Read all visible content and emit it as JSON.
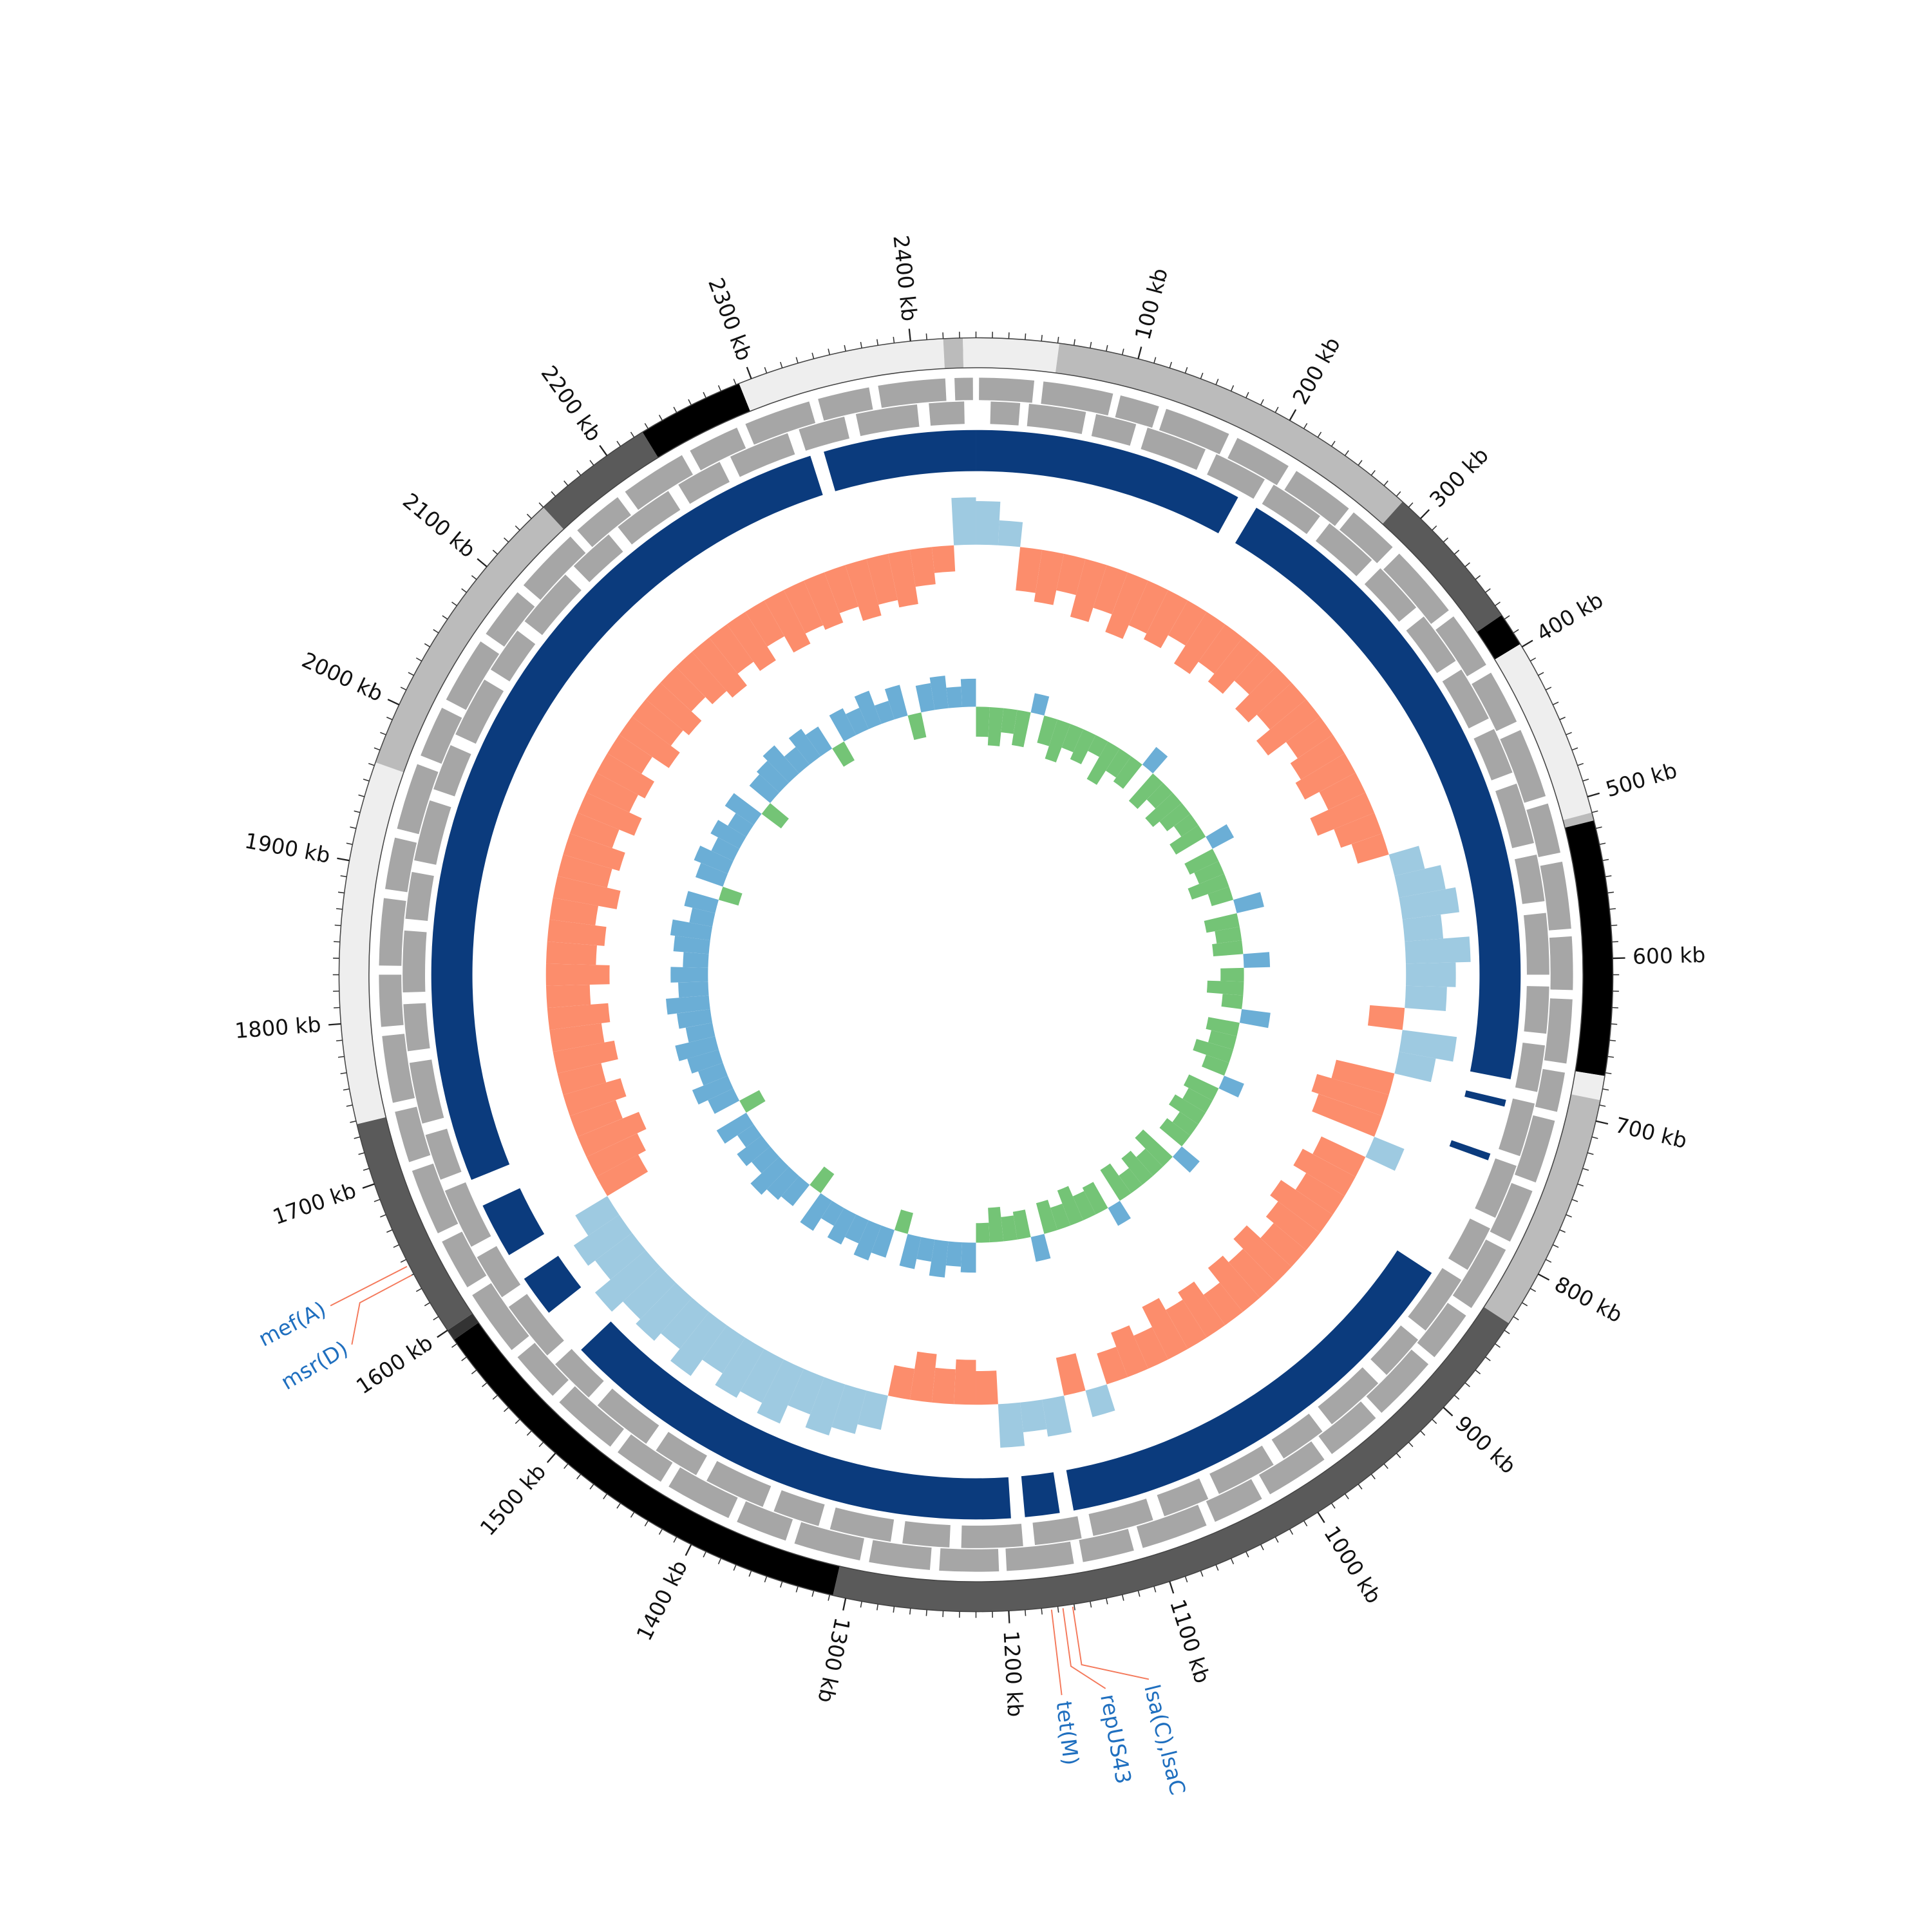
{
  "chart_data": {
    "type": "circular-genome",
    "genome_length": 2440,
    "minor_tick_interval": 10,
    "ticks": [
      {
        "value": 100,
        "label": "100 kb"
      },
      {
        "value": 200,
        "label": "200 kb"
      },
      {
        "value": 300,
        "label": "300 kb"
      },
      {
        "value": 400,
        "label": "400 kb"
      },
      {
        "value": 500,
        "label": "500 kb"
      },
      {
        "value": 600,
        "label": "600 kb"
      },
      {
        "value": 700,
        "label": "700 kb"
      },
      {
        "value": 800,
        "label": "800 kb"
      },
      {
        "value": 900,
        "label": "900 kb"
      },
      {
        "value": 1000,
        "label": "1000 kb"
      },
      {
        "value": 1100,
        "label": "1100 kb"
      },
      {
        "value": 1200,
        "label": "1200 kb"
      },
      {
        "value": 1300,
        "label": "1300 kb"
      },
      {
        "value": 1400,
        "label": "1400 kb"
      },
      {
        "value": 1500,
        "label": "1500 kb"
      },
      {
        "value": 1600,
        "label": "1600 kb"
      },
      {
        "value": 1700,
        "label": "1700 kb"
      },
      {
        "value": 1800,
        "label": "1800 kb"
      },
      {
        "value": 1900,
        "label": "1900 kb"
      },
      {
        "value": 2000,
        "label": "2000 kb"
      },
      {
        "value": 2100,
        "label": "2100 kb"
      },
      {
        "value": 2200,
        "label": "2200 kb"
      },
      {
        "value": 2300,
        "label": "2300 kb"
      },
      {
        "value": 2400,
        "label": "2400 kb"
      }
    ],
    "contigs": [
      {
        "start": 0,
        "end": 51,
        "color": "#eeeeee"
      },
      {
        "start": 51,
        "end": 285,
        "color": "#bbbbbb"
      },
      {
        "start": 285,
        "end": 377,
        "color": "#5a5a5a"
      },
      {
        "start": 377,
        "end": 398,
        "color": "#000000"
      },
      {
        "start": 398,
        "end": 510,
        "color": "#eeeeee"
      },
      {
        "start": 510,
        "end": 515,
        "color": "#bbbbbb"
      },
      {
        "start": 515,
        "end": 672,
        "color": "#000000"
      },
      {
        "start": 672,
        "end": 687,
        "color": "#eeeeee"
      },
      {
        "start": 687,
        "end": 835,
        "color": "#bbbbbb"
      },
      {
        "start": 835,
        "end": 1308,
        "color": "#5a5a5a"
      },
      {
        "start": 1308,
        "end": 1593,
        "color": "#000000"
      },
      {
        "start": 1593,
        "end": 1600,
        "color": "#333333"
      },
      {
        "start": 1600,
        "end": 1738,
        "color": "#5a5a5a"
      },
      {
        "start": 1738,
        "end": 1962,
        "color": "#eeeeee"
      },
      {
        "start": 1962,
        "end": 2150,
        "color": "#bbbbbb"
      },
      {
        "start": 2150,
        "end": 2226,
        "color": "#5a5a5a"
      },
      {
        "start": 2226,
        "end": 2292,
        "color": "#000000"
      },
      {
        "start": 2292,
        "end": 2420,
        "color": "#eeeeee"
      },
      {
        "start": 2420,
        "end": 2432,
        "color": "#bbbbbb"
      },
      {
        "start": 2432,
        "end": 2440,
        "color": "#eeeeee"
      }
    ],
    "genes": {
      "color": "#a6a6a6",
      "forward": [
        [
          2,
          38
        ],
        [
          44,
          90
        ],
        [
          95,
          121
        ],
        [
          126,
          170
        ],
        [
          176,
          214
        ],
        [
          220,
          262
        ],
        [
          266,
          300
        ],
        [
          306,
          355
        ],
        [
          360,
          398
        ],
        [
          404,
          440
        ],
        [
          446,
          492
        ],
        [
          497,
          530
        ],
        [
          536,
          580
        ],
        [
          585,
          620
        ],
        [
          626,
          668
        ],
        [
          674,
          700
        ],
        [
          706,
          748
        ],
        [
          754,
          790
        ],
        [
          796,
          840
        ],
        [
          846,
          880
        ],
        [
          886,
          930
        ],
        [
          935,
          972
        ],
        [
          978,
          1020
        ],
        [
          1026,
          1060
        ],
        [
          1066,
          1110
        ],
        [
          1116,
          1150
        ],
        [
          1156,
          1200
        ],
        [
          1205,
          1244
        ],
        [
          1250,
          1290
        ],
        [
          1296,
          1340
        ],
        [
          1346,
          1380
        ],
        [
          1386,
          1430
        ],
        [
          1436,
          1470
        ],
        [
          1476,
          1520
        ],
        [
          1526,
          1560
        ],
        [
          1566,
          1610
        ],
        [
          1616,
          1650
        ],
        [
          1656,
          1700
        ],
        [
          1706,
          1740
        ],
        [
          1746,
          1790
        ],
        [
          1796,
          1830
        ],
        [
          1836,
          1880
        ],
        [
          1886,
          1920
        ],
        [
          1926,
          1970
        ],
        [
          1976,
          2010
        ],
        [
          2016,
          2060
        ],
        [
          2066,
          2100
        ],
        [
          2106,
          2150
        ],
        [
          2156,
          2190
        ],
        [
          2196,
          2240
        ],
        [
          2246,
          2280
        ],
        [
          2286,
          2330
        ],
        [
          2336,
          2370
        ],
        [
          2376,
          2420
        ],
        [
          2426,
          2438
        ]
      ],
      "reverse": [
        [
          10,
          30
        ],
        [
          36,
          75
        ],
        [
          82,
          110
        ],
        [
          118,
          160
        ],
        [
          168,
          205
        ],
        [
          212,
          250
        ],
        [
          258,
          296
        ],
        [
          304,
          340
        ],
        [
          348,
          385
        ],
        [
          392,
          430
        ],
        [
          438,
          470
        ],
        [
          478,
          520
        ],
        [
          528,
          560
        ],
        [
          568,
          610
        ],
        [
          618,
          650
        ],
        [
          658,
          690
        ],
        [
          698,
          735
        ],
        [
          742,
          780
        ],
        [
          788,
          820
        ],
        [
          828,
          870
        ],
        [
          878,
          910
        ],
        [
          918,
          960
        ],
        [
          968,
          1000
        ],
        [
          1008,
          1050
        ],
        [
          1058,
          1090
        ],
        [
          1098,
          1140
        ],
        [
          1148,
          1180
        ],
        [
          1188,
          1230
        ],
        [
          1238,
          1270
        ],
        [
          1278,
          1320
        ],
        [
          1328,
          1360
        ],
        [
          1368,
          1410
        ],
        [
          1418,
          1450
        ],
        [
          1458,
          1500
        ],
        [
          1508,
          1540
        ],
        [
          1548,
          1590
        ],
        [
          1598,
          1630
        ],
        [
          1638,
          1680
        ],
        [
          1688,
          1720
        ],
        [
          1728,
          1770
        ],
        [
          1778,
          1810
        ],
        [
          1818,
          1860
        ],
        [
          1868,
          1900
        ],
        [
          1908,
          1950
        ],
        [
          1958,
          1990
        ],
        [
          1998,
          2040
        ],
        [
          2048,
          2080
        ],
        [
          2088,
          2130
        ],
        [
          2138,
          2170
        ],
        [
          2178,
          2220
        ],
        [
          2228,
          2260
        ],
        [
          2268,
          2310
        ],
        [
          2318,
          2350
        ],
        [
          2358,
          2400
        ],
        [
          2408,
          2432
        ]
      ]
    },
    "blast_hits": {
      "color": "#0b3b7d",
      "ranges": [
        [
          0,
          195
        ],
        [
          210,
          685
        ],
        [
          700,
          705
        ],
        [
          740,
          745
        ],
        [
          835,
          1150
        ],
        [
          1160,
          1185
        ],
        [
          1195,
          1535
        ],
        [
          1570,
          1600
        ],
        [
          1620,
          1660
        ],
        [
          1680,
          2320
        ],
        [
          2330,
          2440
        ]
      ]
    },
    "x": [
      0,
      20,
      40,
      60,
      80,
      100,
      120,
      140,
      160,
      180,
      200,
      220,
      240,
      260,
      280,
      300,
      320,
      340,
      360,
      380,
      400,
      420,
      440,
      460,
      480,
      500,
      520,
      540,
      560,
      580,
      600,
      620,
      640,
      660,
      680,
      700,
      720,
      740,
      760,
      780,
      800,
      820,
      840,
      860,
      880,
      900,
      920,
      940,
      960,
      980,
      1000,
      1020,
      1040,
      1060,
      1080,
      1100,
      1120,
      1140,
      1160,
      1180,
      1200,
      1220,
      1240,
      1260,
      1280,
      1300,
      1320,
      1340,
      1360,
      1380,
      1400,
      1420,
      1440,
      1460,
      1480,
      1500,
      1520,
      1540,
      1560,
      1580,
      1600,
      1620,
      1640,
      1660,
      1680,
      1700,
      1720,
      1740,
      1760,
      1780,
      1800,
      1820,
      1840,
      1860,
      1880,
      1900,
      1920,
      1940,
      1960,
      1980,
      2000,
      2020,
      2040,
      2060,
      2080,
      2100,
      2120,
      2140,
      2160,
      2180,
      2200,
      2220,
      2240,
      2260,
      2280,
      2300,
      2320,
      2340,
      2360,
      2380,
      2400,
      2420
    ],
    "gc_content": {
      "positive_color": "#9ecae1",
      "negative_color": "#fc8d6c",
      "ylim": [
        -6,
        6
      ],
      "values": [
        3.5,
        2.0,
        -3.5,
        -4.2,
        -3.0,
        -4.8,
        -3.6,
        -5.1,
        -3.9,
        -4.4,
        -3.2,
        -4.9,
        -3.7,
        -4.5,
        -3.1,
        -4.7,
        -3.8,
        -5.2,
        -3.4,
        -4.1,
        -4.6,
        -3.3,
        -4.9,
        -3.5,
        -2.6,
        2.5,
        3.8,
        4.6,
        3.1,
        5.2,
        4.0,
        3.3,
        -2.8,
        4.4,
        3.0,
        -4.8,
        -6.0,
        -5.4,
        2.6,
        -3.9,
        -4.8,
        -3.6,
        -5.0,
        -4.2,
        -3.4,
        -4.9,
        -3.8,
        -4.5,
        -3.0,
        -4.3,
        -3.6,
        -4.7,
        -2.9,
        -3.8,
        -2.6,
        2.2,
        -3.1,
        3.0,
        2.4,
        3.5,
        -2.7,
        -3.6,
        -2.8,
        -3.9,
        -2.5,
        2.8,
        3.6,
        4.3,
        3.2,
        4.8,
        3.9,
        4.5,
        3.4,
        5.0,
        3.8,
        4.6,
        4.1,
        5.3,
        3.7,
        4.4,
        3.0,
        -3.8,
        -4.5,
        -5.3,
        -3.9,
        -4.8,
        -3.6,
        -5.0,
        -4.2,
        -4.9,
        -3.5,
        -5.1,
        -4.0,
        -4.6,
        -3.7,
        -5.2,
        -4.1,
        -4.7,
        -3.6,
        -4.9,
        -3.8,
        -4.4,
        -3.2,
        -4.8,
        -3.9,
        -4.5,
        -3.4,
        -4.2,
        -4.9,
        -3.7,
        -4.6,
        -3.3,
        -4.8,
        -3.9,
        -4.3,
        -3.5,
        -4.7,
        -3.8,
        -4.4,
        -3.0,
        -2.1,
        3.8
      ]
    },
    "gc_skew": {
      "positive_color": "#6baed6",
      "negative_color": "#74c476",
      "ylim": [
        -6,
        6
      ],
      "values": [
        -3.2,
        -4.1,
        -2.6,
        -3.8,
        2.1,
        -3.0,
        -4.4,
        -2.7,
        -3.5,
        -1.9,
        -4.6,
        -2.8,
        -3.3,
        2.4,
        -3.9,
        -2.5,
        -4.0,
        -3.1,
        -2.2,
        -3.7,
        2.6,
        -3.4,
        -2.9,
        -4.2,
        -2.4,
        3.0,
        -3.6,
        -2.7,
        -3.2,
        2.8,
        -2.5,
        -3.9,
        -2.2,
        3.1,
        -3.4,
        -2.8,
        -4.1,
        -2.6,
        2.3,
        -3.5,
        -2.9,
        -3.8,
        -2.4,
        -3.1,
        2.5,
        -4.3,
        -2.7,
        -3.6,
        -2.3,
        -3.9,
        2.2,
        -3.2,
        -2.8,
        -4.0,
        -2.5,
        -3.4,
        2.7,
        -3.0,
        -2.6,
        -3.7,
        -2.1,
        3.2,
        2.6,
        3.9,
        2.4,
        3.5,
        -2.3,
        3.1,
        4.0,
        2.7,
        3.6,
        2.2,
        3.8,
        -2.5,
        2.9,
        3.4,
        4.2,
        2.6,
        3.3,
        2.1,
        3.7,
        -2.4,
        3.0,
        4.1,
        2.8,
        3.5,
        4.4,
        2.9,
        3.6,
        4.6,
        3.2,
        4.0,
        2.7,
        3.8,
        4.3,
        2.5,
        3.4,
        -2.2,
        3.1,
        3.9,
        2.6,
        3.5,
        2.3,
        3.7,
        -2.6,
        2.9,
        3.3,
        4.0,
        2.4,
        3.6,
        2.8,
        -2.3,
        3.2,
        2.5,
        3.8,
        2.1,
        3.4,
        -2.7,
        2.9,
        3.5,
        2.2,
        3.0
      ]
    },
    "annotation_color": "#1f6fbf",
    "annotation_line_color": "#f4795b",
    "annotations": [
      {
        "label": "mef(A)",
        "position": 1646
      },
      {
        "label": "msr(D)",
        "position": 1640
      },
      {
        "label": "tet(M)",
        "position": 1174
      },
      {
        "label": "repUS43",
        "position": 1167
      },
      {
        "label": "lsa(C),lsaC",
        "position": 1161
      }
    ]
  }
}
